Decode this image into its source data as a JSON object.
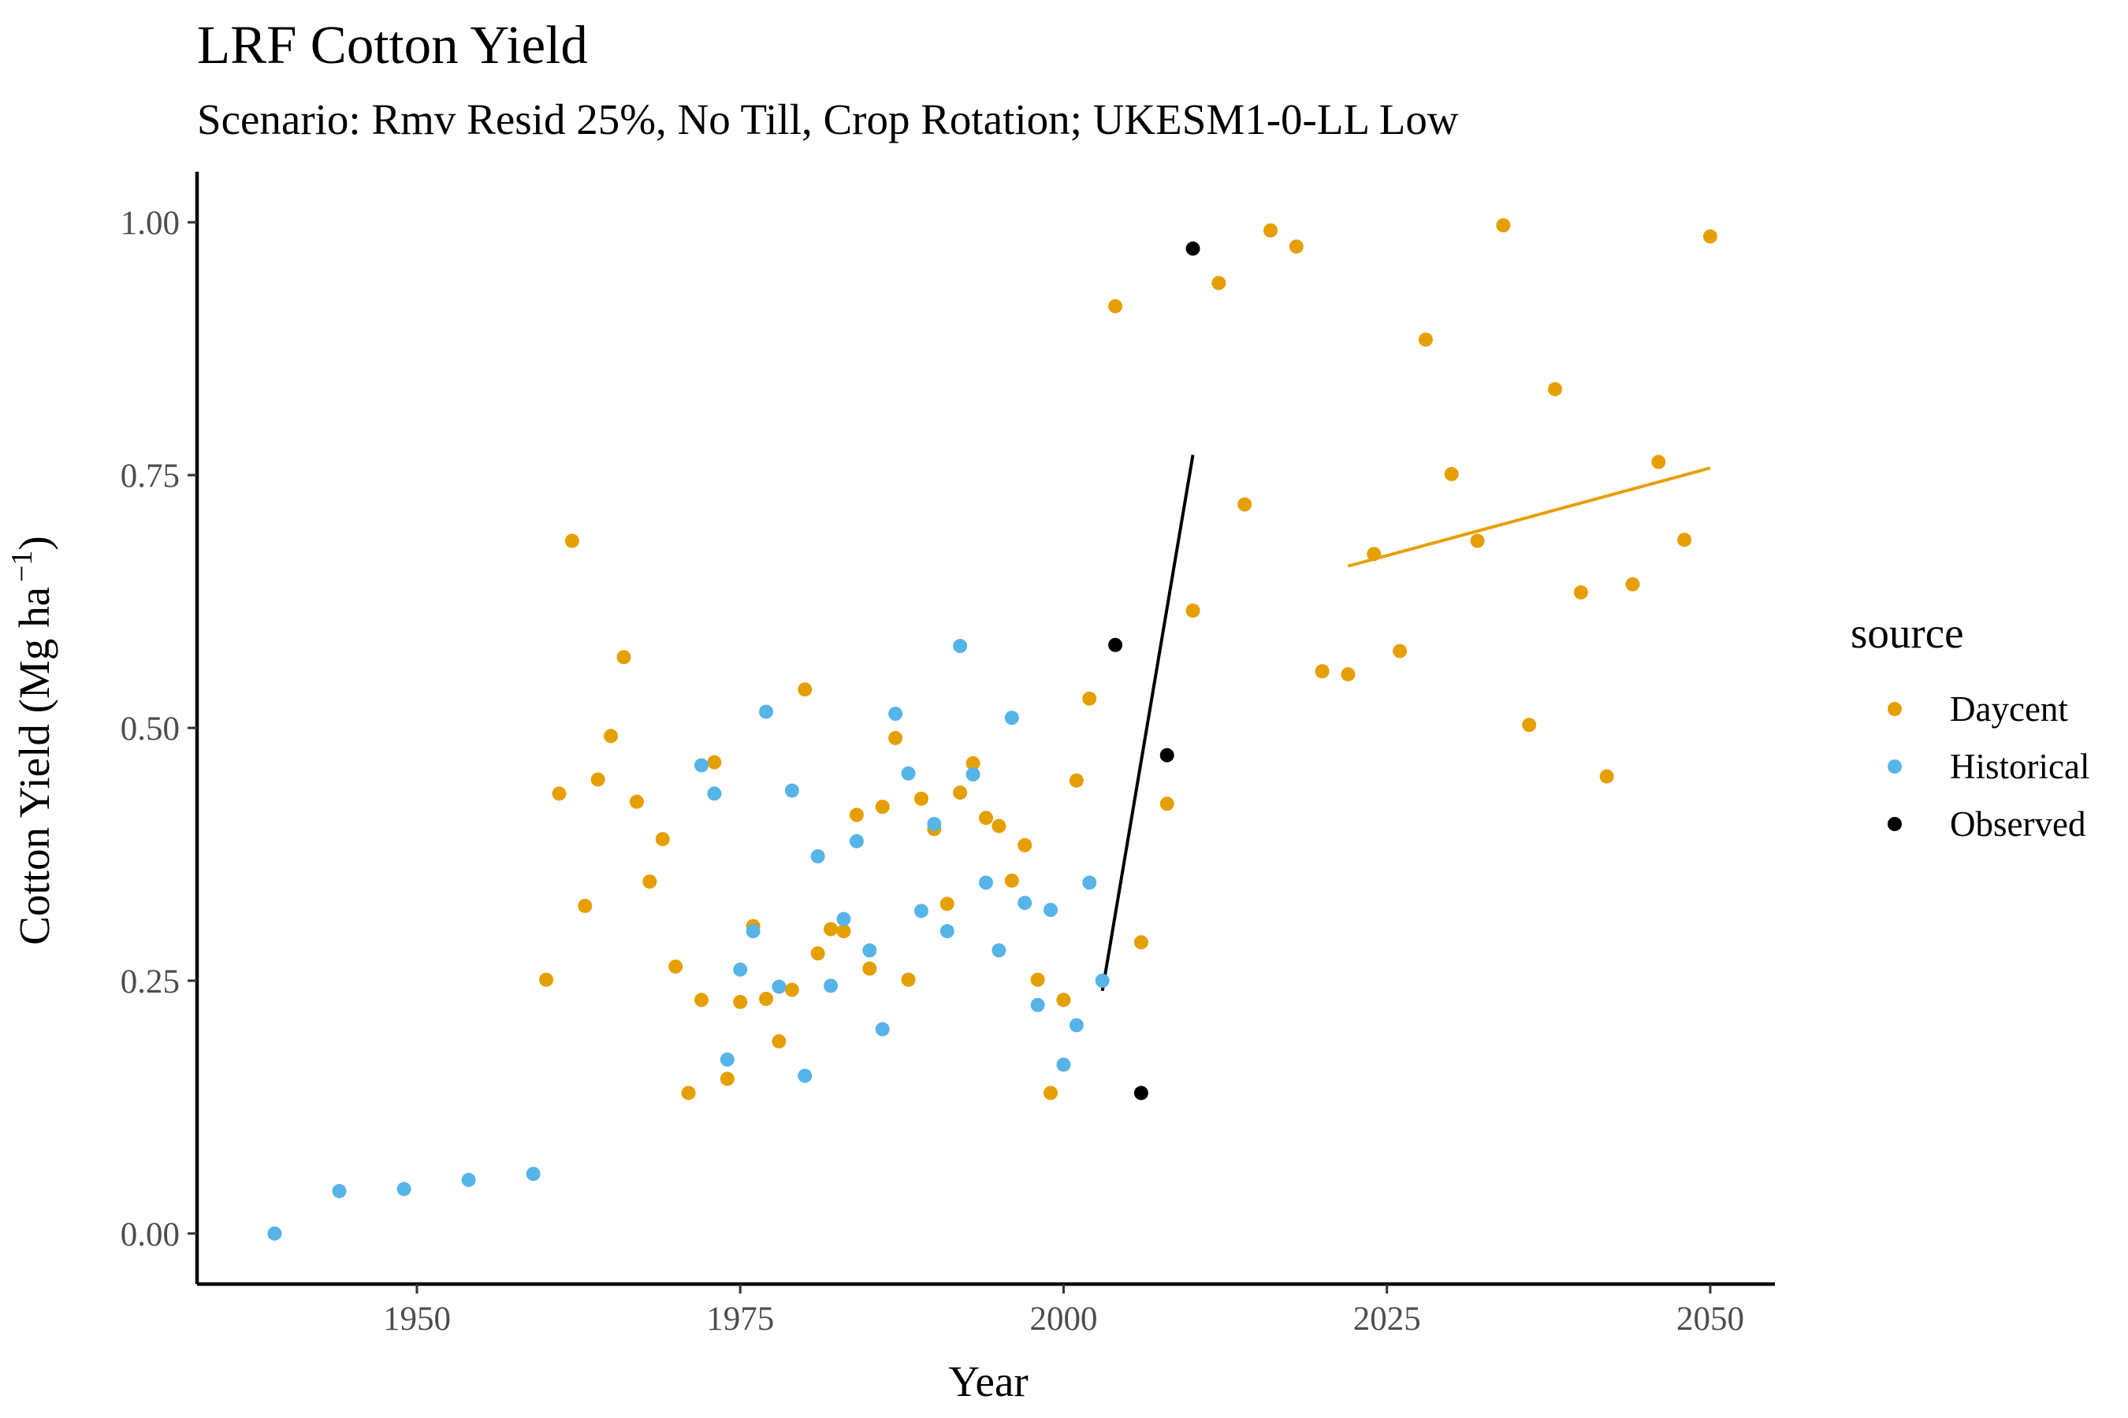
{
  "chart_data": {
    "type": "scatter",
    "title": "LRF Cotton Yield",
    "subtitle": "Scenario: Rmv Resid 25%, No Till, Crop Rotation; UKESM1-0-LL Low",
    "xlabel": "Year",
    "ylabel_main": "Cotton Yield (Mg ha",
    "ylabel_exp": "−1",
    "ylabel_close": ")",
    "xlim": [
      1933,
      2055
    ],
    "ylim": [
      -0.05,
      1.05
    ],
    "x_ticks": [
      1950,
      1975,
      2000,
      2025,
      2050
    ],
    "y_ticks": [
      0,
      0.25,
      0.5,
      0.75,
      1.0
    ],
    "y_tick_labels": [
      "0.00",
      "0.25",
      "0.50",
      "0.75",
      "1.00"
    ],
    "grid": false,
    "legend": {
      "title": "source",
      "position": "right",
      "entries": [
        {
          "label": "Daycent",
          "color": "#E69F00"
        },
        {
          "label": "Historical",
          "color": "#56B4E9"
        },
        {
          "label": "Observed",
          "color": "#000000"
        }
      ]
    },
    "series": [
      {
        "name": "Daycent",
        "color": "#E69F00",
        "points": [
          [
            1960,
            0.251
          ],
          [
            1961,
            0.435
          ],
          [
            1962,
            0.685
          ],
          [
            1963,
            0.324
          ],
          [
            1964,
            0.449
          ],
          [
            1965,
            0.492
          ],
          [
            1966,
            0.57
          ],
          [
            1967,
            0.427
          ],
          [
            1968,
            0.348
          ],
          [
            1969,
            0.39
          ],
          [
            1970,
            0.264
          ],
          [
            1971,
            0.139
          ],
          [
            1972,
            0.231
          ],
          [
            1973,
            0.466
          ],
          [
            1974,
            0.153
          ],
          [
            1975,
            0.229
          ],
          [
            1976,
            0.304
          ],
          [
            1977,
            0.232
          ],
          [
            1978,
            0.19
          ],
          [
            1979,
            0.241
          ],
          [
            1980,
            0.538
          ],
          [
            1981,
            0.277
          ],
          [
            1982,
            0.301
          ],
          [
            1983,
            0.299
          ],
          [
            1984,
            0.414
          ],
          [
            1985,
            0.262
          ],
          [
            1986,
            0.422
          ],
          [
            1987,
            0.49
          ],
          [
            1988,
            0.251
          ],
          [
            1989,
            0.43
          ],
          [
            1990,
            0.4
          ],
          [
            1991,
            0.326
          ],
          [
            1992,
            0.436
          ],
          [
            1993,
            0.465
          ],
          [
            1994,
            0.411
          ],
          [
            1995,
            0.403
          ],
          [
            1996,
            0.349
          ],
          [
            1997,
            0.384
          ],
          [
            1998,
            0.251
          ],
          [
            1999,
            0.139
          ],
          [
            2000,
            0.231
          ],
          [
            2001,
            0.448
          ],
          [
            2002,
            0.529
          ],
          [
            2004,
            0.917
          ],
          [
            2006,
            0.288
          ],
          [
            2008,
            0.425
          ],
          [
            2010,
            0.616
          ],
          [
            2012,
            0.94
          ],
          [
            2014,
            0.721
          ],
          [
            2016,
            0.992
          ],
          [
            2018,
            0.976
          ],
          [
            2020,
            0.556
          ],
          [
            2022,
            0.553
          ],
          [
            2024,
            0.672
          ],
          [
            2026,
            0.576
          ],
          [
            2028,
            0.884
          ],
          [
            2030,
            0.751
          ],
          [
            2032,
            0.685
          ],
          [
            2034,
            0.997
          ],
          [
            2036,
            0.503
          ],
          [
            2038,
            0.835
          ],
          [
            2040,
            0.634
          ],
          [
            2042,
            0.452
          ],
          [
            2044,
            0.642
          ],
          [
            2046,
            0.763
          ],
          [
            2048,
            0.686
          ],
          [
            2050,
            0.986
          ]
        ]
      },
      {
        "name": "Historical",
        "color": "#56B4E9",
        "points": [
          [
            1939,
            0.0
          ],
          [
            1944,
            0.042
          ],
          [
            1949,
            0.044
          ],
          [
            1954,
            0.053
          ],
          [
            1959,
            0.059
          ],
          [
            1972,
            0.463
          ],
          [
            1973,
            0.435
          ],
          [
            1974,
            0.172
          ],
          [
            1975,
            0.261
          ],
          [
            1976,
            0.299
          ],
          [
            1977,
            0.516
          ],
          [
            1978,
            0.244
          ],
          [
            1979,
            0.438
          ],
          [
            1980,
            0.156
          ],
          [
            1981,
            0.373
          ],
          [
            1982,
            0.245
          ],
          [
            1983,
            0.311
          ],
          [
            1984,
            0.388
          ],
          [
            1985,
            0.28
          ],
          [
            1986,
            0.202
          ],
          [
            1987,
            0.514
          ],
          [
            1988,
            0.455
          ],
          [
            1989,
            0.319
          ],
          [
            1990,
            0.405
          ],
          [
            1991,
            0.299
          ],
          [
            1992,
            0.581
          ],
          [
            1993,
            0.454
          ],
          [
            1994,
            0.347
          ],
          [
            1995,
            0.28
          ],
          [
            1996,
            0.51
          ],
          [
            1997,
            0.327
          ],
          [
            1998,
            0.226
          ],
          [
            1999,
            0.32
          ],
          [
            2000,
            0.167
          ],
          [
            2001,
            0.206
          ],
          [
            2002,
            0.347
          ],
          [
            2003,
            0.25
          ]
        ]
      },
      {
        "name": "Observed",
        "color": "#000000",
        "points": [
          [
            2004,
            0.582
          ],
          [
            2006,
            0.139
          ],
          [
            2008,
            0.473
          ],
          [
            2010,
            0.974
          ]
        ]
      }
    ],
    "trend_lines": [
      {
        "series": "Observed",
        "color": "#000000",
        "from": [
          2003,
          0.24
        ],
        "to": [
          2010,
          0.77
        ]
      },
      {
        "series": "Daycent",
        "color": "#E69F00",
        "from": [
          2022,
          0.66
        ],
        "to": [
          2050,
          0.757
        ]
      }
    ]
  }
}
